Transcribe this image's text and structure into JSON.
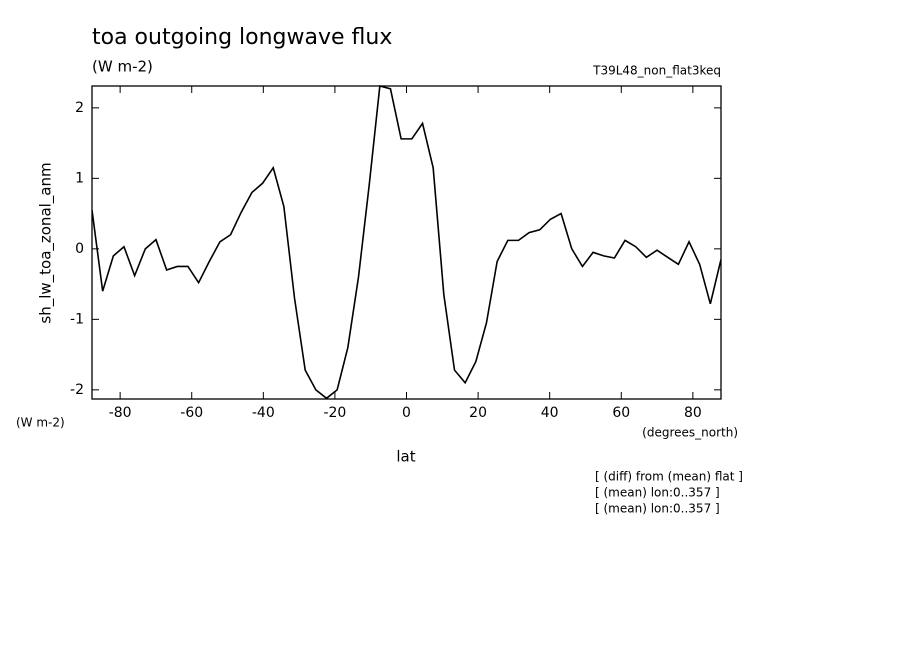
{
  "chart_data": {
    "type": "line",
    "title": "toa outgoing longwave flux",
    "subtitle": "(W m-2)",
    "experiment": "T39L48_non_flat3keq",
    "y_label": "sh_lw_toa_zonal_anm",
    "y_units": "(W m-2)",
    "x_label": "lat",
    "x_units": "(degrees_north)",
    "notes": [
      "[ (diff) from (mean) flat ]",
      "[ (mean) lon:0..357 ]",
      "[ (mean) lon:0..357 ]"
    ],
    "x": [
      -87.86,
      -84.88,
      -81.9,
      -78.93,
      -75.95,
      -72.97,
      -69.99,
      -67.01,
      -64.04,
      -61.06,
      -58.08,
      -55.1,
      -52.12,
      -49.15,
      -46.17,
      -43.19,
      -40.21,
      -37.23,
      -34.26,
      -31.28,
      -28.3,
      -25.32,
      -22.34,
      -19.37,
      -16.39,
      -13.41,
      -10.43,
      -7.45,
      -4.48,
      -1.5,
      1.5,
      4.48,
      7.45,
      10.43,
      13.41,
      16.39,
      19.37,
      22.34,
      25.32,
      28.3,
      31.28,
      34.26,
      37.23,
      40.21,
      43.19,
      46.17,
      49.15,
      52.12,
      55.1,
      58.08,
      61.06,
      64.04,
      67.01,
      69.99,
      72.97,
      75.95,
      78.93,
      81.9,
      84.88,
      87.86
    ],
    "series": [
      {
        "color": "#000000",
        "values": [
          0.55,
          -0.6,
          -0.1,
          0.03,
          -0.38,
          0,
          0.13,
          -0.3,
          -0.25,
          -0.25,
          -0.48,
          -0.18,
          0.1,
          0.2,
          0.52,
          0.8,
          0.93,
          1.15,
          0.6,
          -0.7,
          -1.72,
          -2.0,
          -2.12,
          -2.0,
          -1.4,
          -0.4,
          0.9,
          2.31,
          2.27,
          1.56,
          1.56,
          1.78,
          1.15,
          -0.65,
          -1.72,
          -1.9,
          -1.6,
          -1.05,
          -0.18,
          0.12,
          0.12,
          0.23,
          0.27,
          0.42,
          0.5,
          0.0,
          -0.25,
          -0.05,
          -0.1,
          -0.13,
          0.12,
          0.03,
          -0.12,
          -0.02,
          -0.12,
          -0.22,
          0.1,
          -0.22,
          -0.78,
          -0.15
        ]
      }
    ],
    "xlim": [
      -87.86,
      87.86
    ],
    "ylim": [
      -2.13,
      2.31
    ],
    "xticks": [
      -80,
      -60,
      -40,
      -20,
      0,
      20,
      40,
      60,
      80
    ],
    "yticks": [
      -2,
      -1,
      0,
      1,
      2
    ],
    "grid": false
  }
}
